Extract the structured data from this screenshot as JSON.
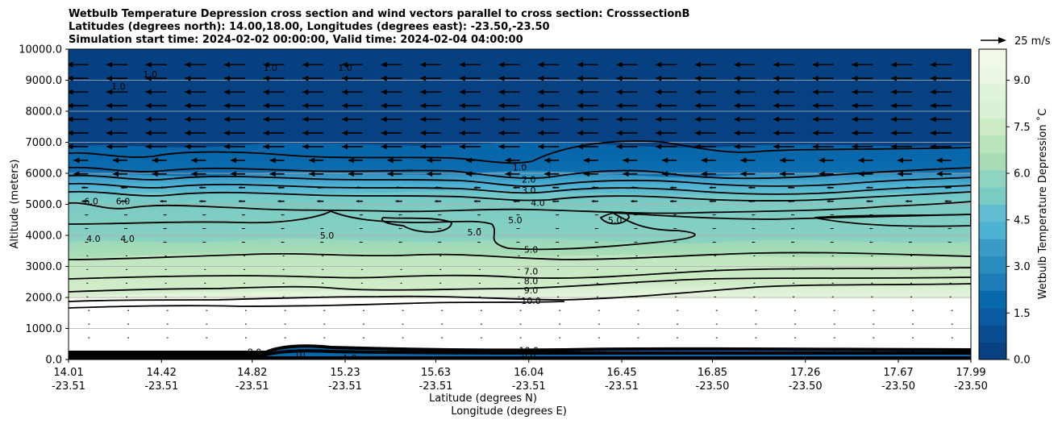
{
  "chart_data": {
    "type": "contour",
    "title_lines": [
      "Wetbulb Temperature Depression cross section and wind vectors parallel to cross section: CrosssectionB",
      "Latitudes (degrees north): 14.00,18.00, Longitudes (degrees east): -23.50,-23.50",
      "Simulation start time: 2024-02-02 00:00:00, Valid time: 2024-02-04 04:00:00"
    ],
    "ylabel": "Altitude (meters)",
    "xlabel_1": "Latitude (degrees N)",
    "xlabel_2": "Longitude (degrees E)",
    "ylim": [
      0,
      10000
    ],
    "y_ticks": [
      "0.0",
      "1000.0",
      "2000.0",
      "3000.0",
      "4000.0",
      "5000.0",
      "6000.0",
      "7000.0",
      "8000.0",
      "9000.0",
      "10000.0"
    ],
    "x_ticks": [
      {
        "lat": "14.01",
        "lon": "-23.51"
      },
      {
        "lat": "14.42",
        "lon": "-23.51"
      },
      {
        "lat": "14.82",
        "lon": "-23.51"
      },
      {
        "lat": "15.23",
        "lon": "-23.51"
      },
      {
        "lat": "15.63",
        "lon": "-23.51"
      },
      {
        "lat": "16.04",
        "lon": "-23.51"
      },
      {
        "lat": "16.45",
        "lon": "-23.51"
      },
      {
        "lat": "16.85",
        "lon": "-23.50"
      },
      {
        "lat": "17.26",
        "lon": "-23.50"
      },
      {
        "lat": "17.67",
        "lon": "-23.50"
      },
      {
        "lat": "17.99",
        "lon": "-23.50"
      }
    ],
    "colorbar": {
      "label": "Wetbulb Temperature Depression ˚C",
      "ticks": [
        "0.0",
        "1.5",
        "3.0",
        "4.5",
        "6.0",
        "7.5",
        "9.0"
      ],
      "range": [
        0,
        10
      ],
      "colors": [
        "#084081",
        "#0a4d92",
        "#0b5ba2",
        "#0868ac",
        "#1d7bb7",
        "#2b8cbe",
        "#3a9cc6",
        "#4eb3d3",
        "#62bdd2",
        "#7bccc4",
        "#8fd4c0",
        "#a8ddb5",
        "#b9e4bc",
        "#ccebc5",
        "#dbf1d5",
        "#e0f3db",
        "#eaf7e4",
        "#f0f9e8"
      ]
    },
    "quiver_key": {
      "label": "25 m/s",
      "speed_ms": 25
    },
    "wind_direction": "westward (leftward) above ~4000 m, weak near surface",
    "contour_levels": [
      "1.0",
      "2.0",
      "3.0",
      "4.0",
      "5.0",
      "6.0",
      "7.0",
      "8.0",
      "9.0",
      "10.0"
    ],
    "contour_labels": [
      {
        "text": "1.0",
        "lat": 14.23,
        "alt": 8800
      },
      {
        "text": "1.0",
        "lat": 14.37,
        "alt": 9200
      },
      {
        "text": "1.0",
        "lat": 14.9,
        "alt": 9400
      },
      {
        "text": "1.0",
        "lat": 15.23,
        "alt": 9400
      },
      {
        "text": "1.0",
        "lat": 16.0,
        "alt": 6200
      },
      {
        "text": "2.0",
        "lat": 16.04,
        "alt": 5800
      },
      {
        "text": "3.0",
        "lat": 16.04,
        "alt": 5450
      },
      {
        "text": "4.0",
        "lat": 16.08,
        "alt": 5050
      },
      {
        "text": "6.0",
        "lat": 14.11,
        "alt": 5100
      },
      {
        "text": "6.0",
        "lat": 14.25,
        "alt": 5100
      },
      {
        "text": "4.0",
        "lat": 14.12,
        "alt": 3900
      },
      {
        "text": "4.0",
        "lat": 14.27,
        "alt": 3900
      },
      {
        "text": "5.0",
        "lat": 15.15,
        "alt": 4000
      },
      {
        "text": "5.0",
        "lat": 15.8,
        "alt": 4100
      },
      {
        "text": "5.0",
        "lat": 15.98,
        "alt": 4500
      },
      {
        "text": "5.0",
        "lat": 16.42,
        "alt": 4500
      },
      {
        "text": "5.0",
        "lat": 16.05,
        "alt": 3550
      },
      {
        "text": "7.0",
        "lat": 16.05,
        "alt": 2850
      },
      {
        "text": "8.0",
        "lat": 16.05,
        "alt": 2530
      },
      {
        "text": "9.0",
        "lat": 16.05,
        "alt": 2230
      },
      {
        "text": "10.0",
        "lat": 16.05,
        "alt": 1900
      },
      {
        "text": "9.0",
        "lat": 14.22,
        "alt": 90
      },
      {
        "text": "5.0",
        "lat": 14.63,
        "alt": 90
      },
      {
        "text": "8.0",
        "lat": 14.83,
        "alt": 250
      },
      {
        "text": "10",
        "lat": 15.03,
        "alt": 150
      },
      {
        "text": "1.0",
        "lat": 15.25,
        "alt": 50
      },
      {
        "text": "10.0",
        "lat": 16.04,
        "alt": 300
      },
      {
        "text": "9.0",
        "lat": 16.04,
        "alt": 100
      }
    ]
  }
}
